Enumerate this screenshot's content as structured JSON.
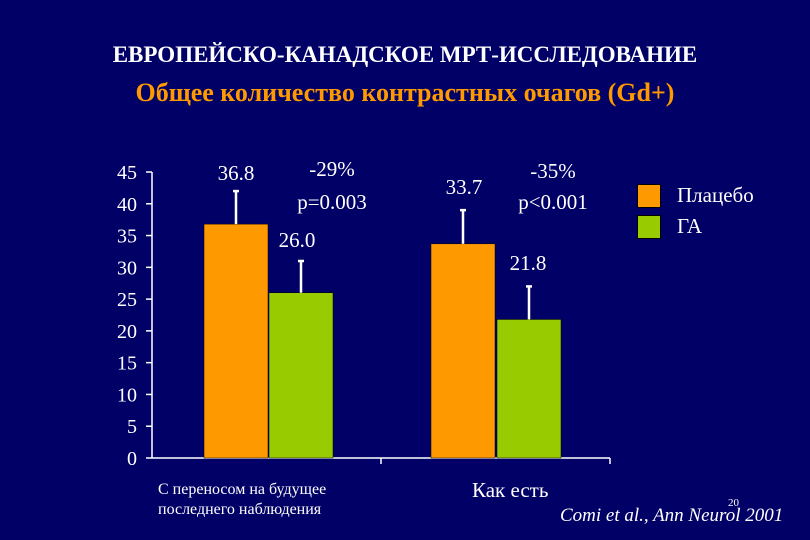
{
  "slide": {
    "title": "ЕВРОПЕЙСКО-КАНАДСКОЕ МРТ-ИССЛЕДОВАНИЕ",
    "subtitle": "Общее количество контрастных очагов (Gd+)",
    "citation": "Comi et al., Ann Neurol 2001",
    "page_number": "20"
  },
  "colors": {
    "background": "#000066",
    "placebo": "#ff9900",
    "ga": "#99cc00",
    "subtitle": "#ff9900"
  },
  "chart_data": {
    "type": "bar",
    "categories": [
      "С переносом на будущее последнего наблюдения",
      "Как есть"
    ],
    "category_lines": [
      [
        "С переносом на будущее",
        "последнего наблюдения"
      ],
      [
        "Как есть"
      ]
    ],
    "series": [
      {
        "name": "Плацебо",
        "values": [
          36.8,
          33.7
        ],
        "labels": [
          "36.8",
          "33.7"
        ],
        "error_top": [
          42.0,
          39.0
        ]
      },
      {
        "name": "ГА",
        "values": [
          26.0,
          21.8
        ],
        "labels": [
          "26.0",
          "21.8"
        ],
        "error_top": [
          31.0,
          27.0
        ]
      }
    ],
    "annotations": [
      {
        "lines": [
          "-29%",
          "p=0.003"
        ]
      },
      {
        "lines": [
          "-35%",
          "p<0.001"
        ]
      }
    ],
    "yticks": [
      "0",
      "5",
      "10",
      "15",
      "20",
      "25",
      "30",
      "35",
      "40",
      "45"
    ],
    "ylim": [
      0,
      45
    ],
    "legend_position": "top-right",
    "grid": false
  }
}
